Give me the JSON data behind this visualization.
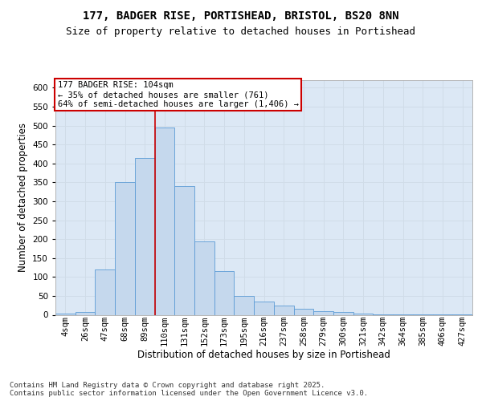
{
  "title_line1": "177, BADGER RISE, PORTISHEAD, BRISTOL, BS20 8NN",
  "title_line2": "Size of property relative to detached houses in Portishead",
  "xlabel": "Distribution of detached houses by size in Portishead",
  "ylabel": "Number of detached properties",
  "footer": "Contains HM Land Registry data © Crown copyright and database right 2025.\nContains public sector information licensed under the Open Government Licence v3.0.",
  "bar_labels": [
    "4sqm",
    "26sqm",
    "47sqm",
    "68sqm",
    "89sqm",
    "110sqm",
    "131sqm",
    "152sqm",
    "173sqm",
    "195sqm",
    "216sqm",
    "237sqm",
    "258sqm",
    "279sqm",
    "300sqm",
    "321sqm",
    "342sqm",
    "364sqm",
    "385sqm",
    "406sqm",
    "427sqm"
  ],
  "bar_values": [
    3,
    8,
    120,
    350,
    415,
    495,
    340,
    195,
    115,
    50,
    35,
    25,
    16,
    10,
    7,
    3,
    1,
    2,
    1,
    1,
    2
  ],
  "bar_color": "#c5d8ed",
  "bar_edge_color": "#5b9bd5",
  "grid_color": "#d0dce8",
  "bg_color": "#dce8f5",
  "annotation_text": "177 BADGER RISE: 104sqm\n← 35% of detached houses are smaller (761)\n64% of semi-detached houses are larger (1,406) →",
  "annotation_box_color": "#ffffff",
  "annotation_box_edge": "#cc0000",
  "vline_x_index": 5,
  "vline_color": "#cc0000",
  "ylim": [
    0,
    620
  ],
  "yticks": [
    0,
    50,
    100,
    150,
    200,
    250,
    300,
    350,
    400,
    450,
    500,
    550,
    600
  ],
  "title_fontsize": 10,
  "subtitle_fontsize": 9,
  "axis_label_fontsize": 8.5,
  "tick_fontsize": 7.5,
  "annotation_fontsize": 7.5,
  "footer_fontsize": 6.5
}
